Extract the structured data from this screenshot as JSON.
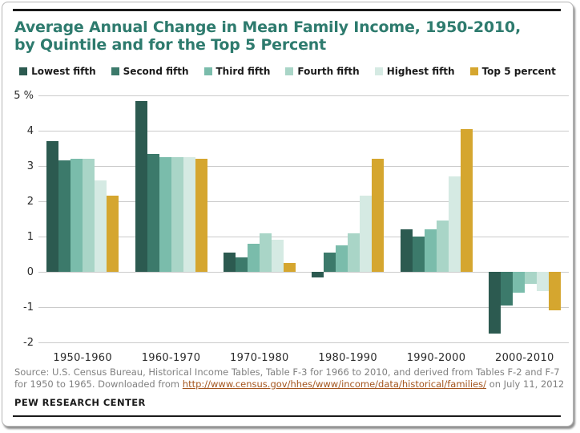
{
  "header": {
    "title_line1": "Average Annual Change in Mean Family Income, 1950-2010,",
    "title_line2": "by Quintile and for the Top 5 Percent"
  },
  "chart_data": {
    "type": "bar",
    "title": "Average Annual Change in Mean Family Income, 1950-2010, by Quintile and for the Top 5 Percent",
    "categories": [
      "1950-1960",
      "1960-1970",
      "1970-1980",
      "1980-1990",
      "1990-2000",
      "2000-2010"
    ],
    "series": [
      {
        "name": "Lowest fifth",
        "color": "#2c5a50",
        "values": [
          3.7,
          4.85,
          0.55,
          -0.15,
          1.2,
          -1.75
        ]
      },
      {
        "name": "Second fifth",
        "color": "#3c7a6b",
        "values": [
          3.15,
          3.35,
          0.4,
          0.55,
          1.0,
          -0.95
        ]
      },
      {
        "name": "Third fifth",
        "color": "#7abcab",
        "values": [
          3.2,
          3.25,
          0.8,
          0.75,
          1.2,
          -0.6
        ]
      },
      {
        "name": "Fourth fifth",
        "color": "#a9d5c7",
        "values": [
          3.2,
          3.25,
          1.1,
          1.1,
          1.45,
          -0.35
        ]
      },
      {
        "name": "Highest fifth",
        "color": "#d5eae3",
        "values": [
          2.6,
          3.25,
          0.9,
          2.15,
          2.7,
          -0.55
        ]
      },
      {
        "name": "Top 5 percent",
        "color": "#d5a62f",
        "values": [
          2.15,
          3.2,
          0.25,
          3.2,
          4.05,
          -1.1
        ]
      }
    ],
    "ylim": [
      -2,
      5
    ],
    "y_ticks": [
      "5 %",
      "4",
      "3",
      "2",
      "1",
      "0",
      "-1",
      "-2"
    ],
    "xlabel": "",
    "ylabel": "",
    "grid": true,
    "legend_position": "top"
  },
  "footer": {
    "source_prefix": "Source: U.S. Census Bureau, Historical Income Tables, Table F-3 for 1966 to 2010, and derived from Tables F-2 and F-7 for 1950 to 1965. Downloaded from ",
    "source_link": "http://www.census.gov/hhes/www/income/data/historical/families/",
    "source_suffix": " on July 11, 2012",
    "branding": "PEW RESEARCH CENTER"
  },
  "colors": {
    "title": "#2e7b6e",
    "gridline": "#cbcbcb",
    "axis_text": "#2b2b2b",
    "source_text": "#808080",
    "link": "#a4551e",
    "rule": "#1a1a1a"
  }
}
